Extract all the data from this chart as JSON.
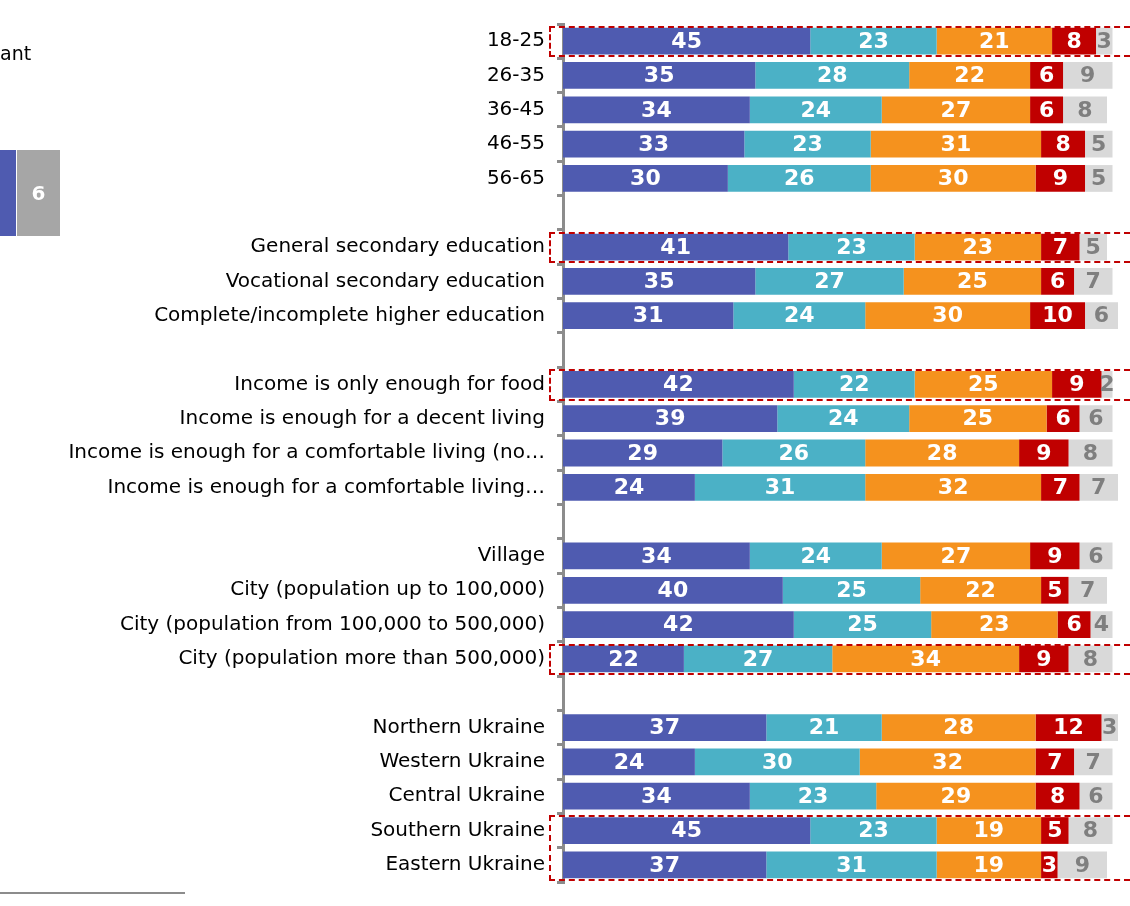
{
  "chart_data": {
    "type": "bar",
    "orientation": "horizontal",
    "stacked": true,
    "data_labels": true,
    "tick_labels": "y",
    "legend": false,
    "categories": [
      "18-25",
      "26-35",
      "36-45",
      "46-55",
      "56-65",
      null,
      "General secondary education",
      "Vocational secondary education",
      "Complete/incomplete higher education",
      null,
      "Income is only enough for food",
      "Income is enough for a decent living",
      "Income is enough for a comfortable living (no…",
      "Income is enough for a comfortable living…",
      null,
      "Village",
      "City (population up to 100,000)",
      "City (population from 100,000 to 500,000)",
      "City (population more than 500,000)",
      null,
      "Northern Ukraine",
      "Western Ukraine",
      "Central Ukraine",
      "Southern Ukraine",
      "Eastern Ukraine"
    ],
    "xlim": [
      0,
      101
    ],
    "series": [
      {
        "color": "#4f5bb0",
        "values": [
          45,
          35,
          34,
          33,
          30,
          null,
          41,
          35,
          31,
          null,
          42,
          39,
          29,
          24,
          null,
          34,
          40,
          42,
          22,
          null,
          37,
          24,
          34,
          45,
          37
        ]
      },
      {
        "color": "#4bb1c6",
        "values": [
          23,
          28,
          24,
          23,
          26,
          null,
          23,
          27,
          24,
          null,
          22,
          24,
          26,
          31,
          null,
          24,
          25,
          25,
          27,
          null,
          21,
          30,
          23,
          23,
          31
        ]
      },
      {
        "color": "#f5921e",
        "values": [
          21,
          22,
          27,
          31,
          30,
          null,
          23,
          25,
          30,
          null,
          25,
          25,
          28,
          32,
          null,
          27,
          22,
          23,
          34,
          null,
          28,
          32,
          29,
          19,
          19
        ]
      },
      {
        "color": "#c00000",
        "values": [
          8,
          6,
          6,
          8,
          9,
          null,
          7,
          6,
          10,
          null,
          9,
          6,
          9,
          7,
          null,
          9,
          5,
          6,
          9,
          null,
          12,
          7,
          8,
          5,
          3
        ]
      },
      {
        "color": "#d9d9d9",
        "values": [
          3,
          9,
          8,
          5,
          5,
          null,
          5,
          7,
          6,
          null,
          2,
          6,
          8,
          7,
          null,
          6,
          7,
          4,
          8,
          null,
          3,
          7,
          6,
          8,
          9
        ]
      }
    ],
    "annotations": [
      "ant",
      "6"
    ]
  }
}
